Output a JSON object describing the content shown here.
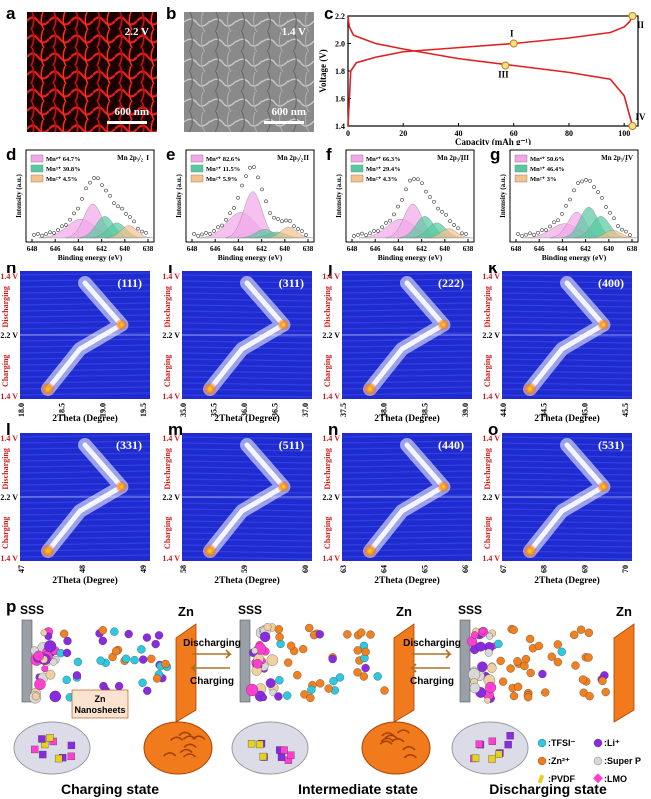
{
  "panels": {
    "a": {
      "label": "a",
      "voltage": "2.2 V",
      "scale": "600 nm"
    },
    "b": {
      "label": "b",
      "voltage": "1.4 V",
      "scale": "600 nm"
    },
    "c": {
      "label": "c",
      "xlabel": "Capacity (mAh g⁻¹)",
      "ylabel": "Voltage (V)",
      "points": [
        "I",
        "II",
        "III",
        "IV"
      ]
    },
    "d": {
      "label": "d",
      "title": "Mn 2p₃/₂",
      "roman": "I",
      "legend": [
        "Mn⁴⁺ 64.7%",
        "Mn³⁺ 30.8%",
        "Mn²⁺ 4.5%"
      ]
    },
    "e": {
      "label": "e",
      "title": "Mn 2p₃/₂",
      "roman": "II",
      "legend": [
        "Mn⁴⁺ 82.6%",
        "Mn³⁺ 11.5%",
        "Mn²⁺ 5.9%"
      ]
    },
    "f": {
      "label": "f",
      "title": "Mn 2p₃/₂",
      "roman": "III",
      "legend": [
        "Mn⁴⁺ 66.3%",
        "Mn³⁺ 29.4%",
        "Mn²⁺ 4.3%"
      ]
    },
    "g": {
      "label": "g",
      "title": "Mn 2p₃/₂",
      "roman": "IV",
      "legend": [
        "Mn⁴⁺ 50.6%",
        "Mn³⁺ 46.4%",
        "Mn²⁺ 3%"
      ]
    },
    "xps_xlabel": "Binding energy (eV)",
    "xps_ylabel": "Intensity (a.u.)",
    "xps_ticks": [
      "648",
      "646",
      "644",
      "642",
      "640",
      "638"
    ],
    "contours": [
      {
        "label": "h",
        "hkl": "(111)",
        "ticks": [
          "18.0",
          "18.5",
          "19.0",
          "19.5"
        ]
      },
      {
        "label": "i",
        "hkl": "(311)",
        "ticks": [
          "35.0",
          "35.5",
          "36.0",
          "36.5",
          "37.0"
        ]
      },
      {
        "label": "j",
        "hkl": "(222)",
        "ticks": [
          "37.5",
          "38.0",
          "38.5",
          "39.0"
        ]
      },
      {
        "label": "k",
        "hkl": "(400)",
        "ticks": [
          "44.0",
          "44.5",
          "45.0",
          "45.5"
        ]
      },
      {
        "label": "l",
        "hkl": "(331)",
        "ticks": [
          "47",
          "48",
          "49"
        ]
      },
      {
        "label": "m",
        "hkl": "(511)",
        "ticks": [
          "58",
          "59",
          "60"
        ]
      },
      {
        "label": "n",
        "hkl": "(440)",
        "ticks": [
          "63",
          "64",
          "65",
          "66"
        ]
      },
      {
        "label": "o",
        "hkl": "(531)",
        "ticks": [
          "67",
          "68",
          "69",
          "70"
        ]
      }
    ],
    "contour_xlabel": "2Theta (Degree)",
    "contour_side": {
      "top": "1.4 V",
      "mid": "2.2 V",
      "bottom": "1.4 V",
      "discharging": "Discharging",
      "charging": "Charging"
    },
    "p": {
      "label": "p",
      "sss": "SSS",
      "zn": "Zn",
      "discharging": "Discharging",
      "charging": "Charging",
      "zn_nanosheets": "Zn Nanosheets",
      "states": [
        "Charging state",
        "Intermediate state",
        "Discharging state"
      ],
      "legend": [
        ":TFSI⁻",
        ":Li⁺",
        ":Zn²⁺",
        ":Super P",
        ":PVDF",
        ":LMO"
      ]
    }
  },
  "chart_data": {
    "type": "line",
    "title": "",
    "xlabel": "Capacity (mAh g⁻¹)",
    "ylabel": "Voltage (V)",
    "xlim": [
      0,
      105
    ],
    "ylim": [
      1.4,
      2.2
    ],
    "xticks": [
      0,
      20,
      40,
      60,
      80,
      100
    ],
    "yticks": [
      1.4,
      1.6,
      1.8,
      2.0,
      2.2
    ],
    "series": [
      {
        "x": [
          0,
          1,
          3,
          10,
          20,
          40,
          60,
          80,
          95,
          100,
          102,
          103
        ],
        "y": [
          1.4,
          1.8,
          1.86,
          1.9,
          1.94,
          1.97,
          2.0,
          2.04,
          2.08,
          2.12,
          2.16,
          2.2
        ]
      },
      {
        "x": [
          0,
          0.5,
          2,
          10,
          20,
          40,
          60,
          80,
          95,
          100,
          103
        ],
        "y": [
          2.2,
          2.12,
          2.06,
          2.0,
          1.96,
          1.89,
          1.84,
          1.79,
          1.74,
          1.62,
          1.4
        ]
      }
    ],
    "markers": [
      {
        "label": "I",
        "x": 60,
        "y": 2.0
      },
      {
        "label": "II",
        "x": 103,
        "y": 2.2
      },
      {
        "label": "III",
        "x": 57,
        "y": 1.84
      },
      {
        "label": "IV",
        "x": 103,
        "y": 1.4
      }
    ]
  }
}
